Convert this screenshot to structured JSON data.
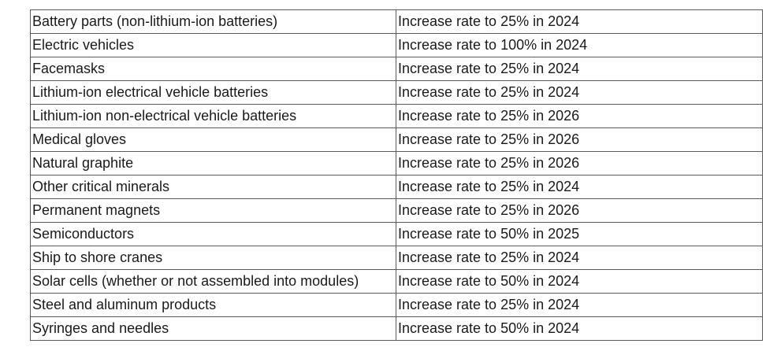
{
  "table": {
    "rows": [
      {
        "product": "Battery parts (non-lithium-ion batteries)",
        "action": "Increase rate to 25% in 2024"
      },
      {
        "product": "Electric vehicles",
        "action": "Increase rate to 100% in 2024"
      },
      {
        "product": "Facemasks",
        "action": "Increase rate to 25% in 2024"
      },
      {
        "product": "Lithium-ion electrical vehicle batteries",
        "action": "Increase rate to 25% in 2024"
      },
      {
        "product": "Lithium-ion non-electrical vehicle batteries",
        "action": "Increase rate to 25% in 2026"
      },
      {
        "product": "Medical gloves",
        "action": "Increase rate to 25% in 2026"
      },
      {
        "product": "Natural graphite",
        "action": "Increase rate to 25% in 2026"
      },
      {
        "product": "Other critical minerals",
        "action": "Increase rate to 25% in 2024"
      },
      {
        "product": "Permanent magnets",
        "action": "Increase rate to 25% in 2026"
      },
      {
        "product": "Semiconductors",
        "action": "Increase rate to 50% in 2025"
      },
      {
        "product": "Ship to shore cranes",
        "action": "Increase rate to 25% in 2024"
      },
      {
        "product": "Solar cells (whether or not assembled into modules)",
        "action": "Increase rate to 50% in 2024"
      },
      {
        "product": "Steel and aluminum products",
        "action": "Increase rate to 25% in 2024"
      },
      {
        "product": "Syringes and needles",
        "action": "Increase rate to 50% in 2024"
      }
    ]
  }
}
